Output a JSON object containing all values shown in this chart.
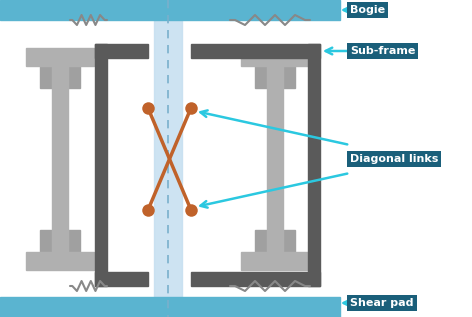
{
  "bg_color": "#ffffff",
  "bogie_color": "#5ab4d0",
  "frame_light": "#b0b0b0",
  "frame_dark": "#5a5a5a",
  "spring_color": "#888888",
  "diagonal_color": "#c0622a",
  "label_bg": "#1a5f7a",
  "label_fg": "#ffffff",
  "arrow_color": "#2bc8e0",
  "center_strip_color": "#c5dff0",
  "center_dash_color": "#7ab0cc",
  "labels": {
    "bogie": "Bogie",
    "subframe": "Sub-frame",
    "diagonal": "Diagonal links",
    "shear": "Shear pad"
  },
  "fig_width": 4.72,
  "fig_height": 3.17,
  "dpi": 100
}
